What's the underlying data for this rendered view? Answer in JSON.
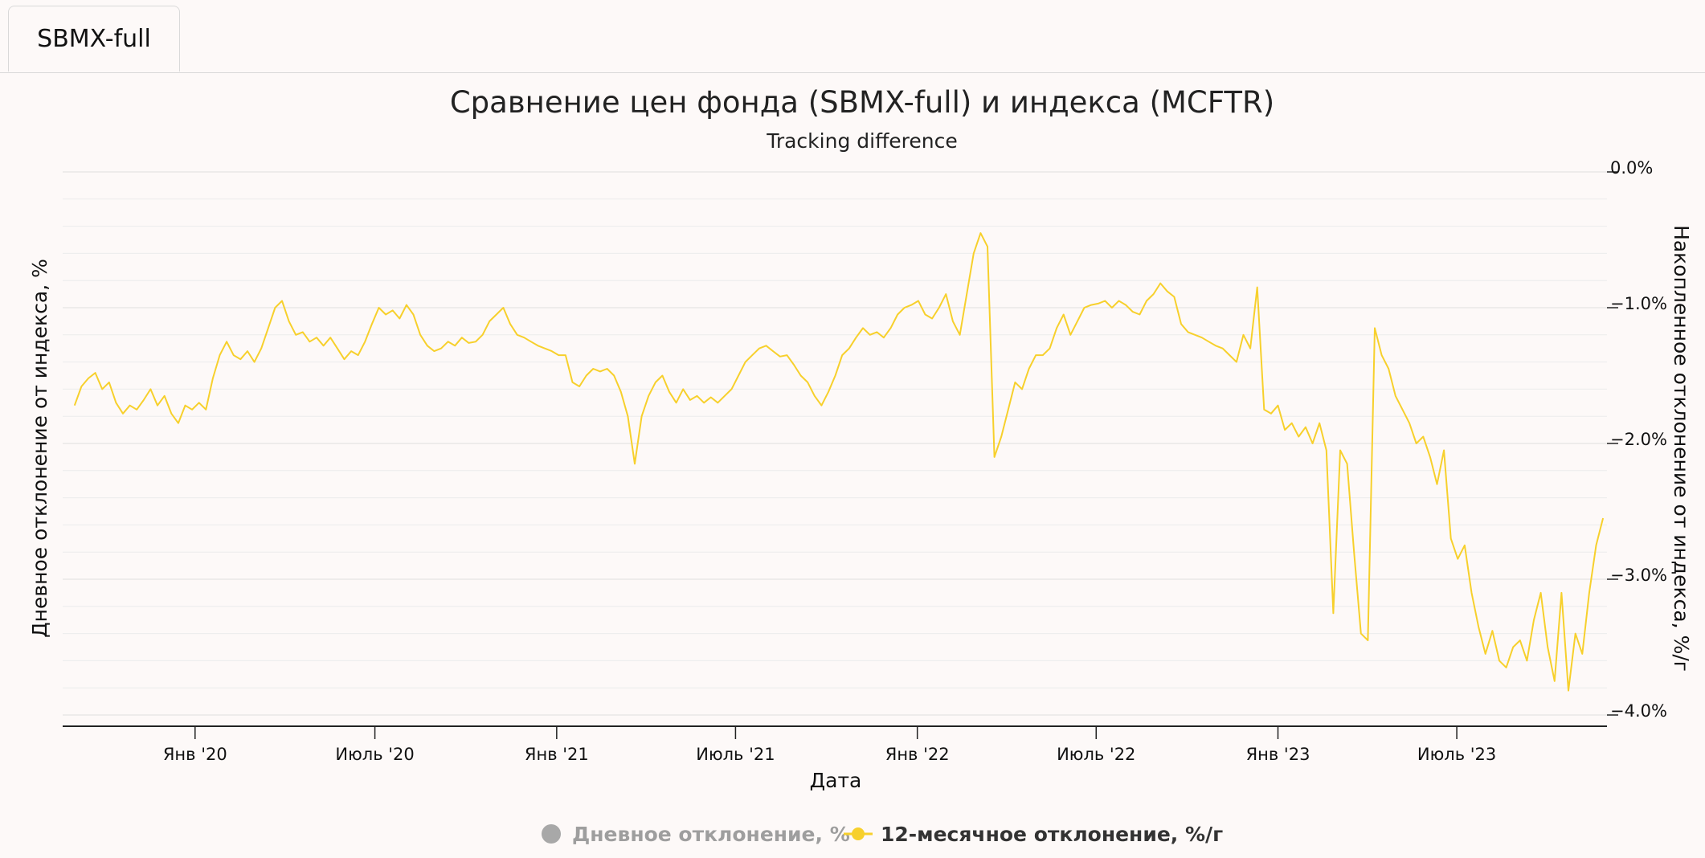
{
  "tabs": [
    {
      "label": "SBMX-full"
    }
  ],
  "chart_data": {
    "type": "line",
    "title": "Сравнение цен фонда (SBMX-full) и индекса (MCFTR)",
    "subtitle": "Tracking difference",
    "xlabel": "Дата",
    "ylabel_left": "Дневное отклонение от индекса, %",
    "ylabel_right": "Накопленное отклонение от индекса, %/г",
    "x_ticks": [
      {
        "label": "Янв '20",
        "date": "2020-01-01"
      },
      {
        "label": "Июль '20",
        "date": "2020-07-01"
      },
      {
        "label": "Янв '21",
        "date": "2021-01-01"
      },
      {
        "label": "Июль '21",
        "date": "2021-07-01"
      },
      {
        "label": "Янв '22",
        "date": "2022-01-01"
      },
      {
        "label": "Июль '22",
        "date": "2022-07-01"
      },
      {
        "label": "Янв '23",
        "date": "2023-01-01"
      },
      {
        "label": "Июль '23",
        "date": "2023-07-01"
      }
    ],
    "x_range": [
      "2019-08-20",
      "2023-11-30"
    ],
    "y_right_ticks": [
      "0.0%",
      "−1.0%",
      "−2.0%",
      "−3.0%",
      "−4.0%"
    ],
    "y_right_range": [
      -4.0,
      0.0
    ],
    "grid": true,
    "legend_position": "bottom-center",
    "series": [
      {
        "name": "Дневное отклонение, %",
        "color": "#a8a8a8",
        "hidden": true,
        "points": []
      },
      {
        "name": "12-месячное отклонение, %/г",
        "color": "#f7d02c",
        "points": [
          [
            "2019-09-01",
            -1.72
          ],
          [
            "2019-09-08",
            -1.58
          ],
          [
            "2019-09-15",
            -1.52
          ],
          [
            "2019-09-22",
            -1.48
          ],
          [
            "2019-09-29",
            -1.6
          ],
          [
            "2019-10-06",
            -1.55
          ],
          [
            "2019-10-13",
            -1.7
          ],
          [
            "2019-10-20",
            -1.78
          ],
          [
            "2019-10-27",
            -1.72
          ],
          [
            "2019-11-03",
            -1.75
          ],
          [
            "2019-11-10",
            -1.68
          ],
          [
            "2019-11-17",
            -1.6
          ],
          [
            "2019-11-24",
            -1.72
          ],
          [
            "2019-12-01",
            -1.65
          ],
          [
            "2019-12-08",
            -1.78
          ],
          [
            "2019-12-15",
            -1.85
          ],
          [
            "2019-12-22",
            -1.72
          ],
          [
            "2019-12-29",
            -1.75
          ],
          [
            "2020-01-05",
            -1.7
          ],
          [
            "2020-01-12",
            -1.75
          ],
          [
            "2020-01-19",
            -1.52
          ],
          [
            "2020-01-26",
            -1.35
          ],
          [
            "2020-02-02",
            -1.25
          ],
          [
            "2020-02-09",
            -1.35
          ],
          [
            "2020-02-16",
            -1.38
          ],
          [
            "2020-02-23",
            -1.32
          ],
          [
            "2020-03-01",
            -1.4
          ],
          [
            "2020-03-08",
            -1.3
          ],
          [
            "2020-03-15",
            -1.15
          ],
          [
            "2020-03-22",
            -1.0
          ],
          [
            "2020-03-29",
            -0.95
          ],
          [
            "2020-04-05",
            -1.1
          ],
          [
            "2020-04-12",
            -1.2
          ],
          [
            "2020-04-19",
            -1.18
          ],
          [
            "2020-04-26",
            -1.25
          ],
          [
            "2020-05-03",
            -1.22
          ],
          [
            "2020-05-10",
            -1.28
          ],
          [
            "2020-05-17",
            -1.22
          ],
          [
            "2020-05-24",
            -1.3
          ],
          [
            "2020-05-31",
            -1.38
          ],
          [
            "2020-06-07",
            -1.32
          ],
          [
            "2020-06-14",
            -1.35
          ],
          [
            "2020-06-21",
            -1.25
          ],
          [
            "2020-06-28",
            -1.12
          ],
          [
            "2020-07-05",
            -1.0
          ],
          [
            "2020-07-12",
            -1.05
          ],
          [
            "2020-07-19",
            -1.02
          ],
          [
            "2020-07-26",
            -1.08
          ],
          [
            "2020-08-02",
            -0.98
          ],
          [
            "2020-08-09",
            -1.05
          ],
          [
            "2020-08-16",
            -1.2
          ],
          [
            "2020-08-23",
            -1.28
          ],
          [
            "2020-08-30",
            -1.32
          ],
          [
            "2020-09-06",
            -1.3
          ],
          [
            "2020-09-13",
            -1.25
          ],
          [
            "2020-09-20",
            -1.28
          ],
          [
            "2020-09-27",
            -1.22
          ],
          [
            "2020-10-04",
            -1.26
          ],
          [
            "2020-10-11",
            -1.25
          ],
          [
            "2020-10-18",
            -1.2
          ],
          [
            "2020-10-25",
            -1.1
          ],
          [
            "2020-11-01",
            -1.05
          ],
          [
            "2020-11-08",
            -1.0
          ],
          [
            "2020-11-15",
            -1.12
          ],
          [
            "2020-11-22",
            -1.2
          ],
          [
            "2020-11-29",
            -1.22
          ],
          [
            "2020-12-06",
            -1.25
          ],
          [
            "2020-12-13",
            -1.28
          ],
          [
            "2020-12-20",
            -1.3
          ],
          [
            "2020-12-27",
            -1.32
          ],
          [
            "2021-01-03",
            -1.35
          ],
          [
            "2021-01-10",
            -1.35
          ],
          [
            "2021-01-17",
            -1.55
          ],
          [
            "2021-01-24",
            -1.58
          ],
          [
            "2021-01-31",
            -1.5
          ],
          [
            "2021-02-07",
            -1.45
          ],
          [
            "2021-02-14",
            -1.47
          ],
          [
            "2021-02-21",
            -1.45
          ],
          [
            "2021-02-28",
            -1.5
          ],
          [
            "2021-03-07",
            -1.62
          ],
          [
            "2021-03-14",
            -1.8
          ],
          [
            "2021-03-21",
            -2.15
          ],
          [
            "2021-03-28",
            -1.8
          ],
          [
            "2021-04-04",
            -1.65
          ],
          [
            "2021-04-11",
            -1.55
          ],
          [
            "2021-04-18",
            -1.5
          ],
          [
            "2021-04-25",
            -1.62
          ],
          [
            "2021-05-02",
            -1.7
          ],
          [
            "2021-05-09",
            -1.6
          ],
          [
            "2021-05-16",
            -1.68
          ],
          [
            "2021-05-23",
            -1.65
          ],
          [
            "2021-05-30",
            -1.7
          ],
          [
            "2021-06-06",
            -1.66
          ],
          [
            "2021-06-13",
            -1.7
          ],
          [
            "2021-06-20",
            -1.65
          ],
          [
            "2021-06-27",
            -1.6
          ],
          [
            "2021-07-04",
            -1.5
          ],
          [
            "2021-07-11",
            -1.4
          ],
          [
            "2021-07-18",
            -1.35
          ],
          [
            "2021-07-25",
            -1.3
          ],
          [
            "2021-08-01",
            -1.28
          ],
          [
            "2021-08-08",
            -1.32
          ],
          [
            "2021-08-15",
            -1.36
          ],
          [
            "2021-08-22",
            -1.35
          ],
          [
            "2021-08-29",
            -1.42
          ],
          [
            "2021-09-05",
            -1.5
          ],
          [
            "2021-09-12",
            -1.55
          ],
          [
            "2021-09-19",
            -1.65
          ],
          [
            "2021-09-26",
            -1.72
          ],
          [
            "2021-10-03",
            -1.62
          ],
          [
            "2021-10-10",
            -1.5
          ],
          [
            "2021-10-17",
            -1.35
          ],
          [
            "2021-10-24",
            -1.3
          ],
          [
            "2021-10-31",
            -1.22
          ],
          [
            "2021-11-07",
            -1.15
          ],
          [
            "2021-11-14",
            -1.2
          ],
          [
            "2021-11-21",
            -1.18
          ],
          [
            "2021-11-28",
            -1.22
          ],
          [
            "2021-12-05",
            -1.15
          ],
          [
            "2021-12-12",
            -1.05
          ],
          [
            "2021-12-19",
            -1.0
          ],
          [
            "2021-12-26",
            -0.98
          ],
          [
            "2022-01-02",
            -0.95
          ],
          [
            "2022-01-09",
            -1.05
          ],
          [
            "2022-01-16",
            -1.08
          ],
          [
            "2022-01-23",
            -1.0
          ],
          [
            "2022-01-30",
            -0.9
          ],
          [
            "2022-02-06",
            -1.1
          ],
          [
            "2022-02-13",
            -1.2
          ],
          [
            "2022-02-20",
            -0.9
          ],
          [
            "2022-02-27",
            -0.6
          ],
          [
            "2022-03-06",
            -0.45
          ],
          [
            "2022-03-13",
            -0.55
          ],
          [
            "2022-03-20",
            -2.1
          ],
          [
            "2022-03-27",
            -1.95
          ],
          [
            "2022-04-03",
            -1.75
          ],
          [
            "2022-04-10",
            -1.55
          ],
          [
            "2022-04-17",
            -1.6
          ],
          [
            "2022-04-24",
            -1.45
          ],
          [
            "2022-05-01",
            -1.35
          ],
          [
            "2022-05-08",
            -1.35
          ],
          [
            "2022-05-15",
            -1.3
          ],
          [
            "2022-05-22",
            -1.15
          ],
          [
            "2022-05-29",
            -1.05
          ],
          [
            "2022-06-05",
            -1.2
          ],
          [
            "2022-06-12",
            -1.1
          ],
          [
            "2022-06-19",
            -1.0
          ],
          [
            "2022-06-26",
            -0.98
          ],
          [
            "2022-07-03",
            -0.97
          ],
          [
            "2022-07-10",
            -0.95
          ],
          [
            "2022-07-17",
            -1.0
          ],
          [
            "2022-07-24",
            -0.95
          ],
          [
            "2022-07-31",
            -0.98
          ],
          [
            "2022-08-07",
            -1.03
          ],
          [
            "2022-08-14",
            -1.05
          ],
          [
            "2022-08-21",
            -0.95
          ],
          [
            "2022-08-28",
            -0.9
          ],
          [
            "2022-09-04",
            -0.82
          ],
          [
            "2022-09-11",
            -0.88
          ],
          [
            "2022-09-18",
            -0.92
          ],
          [
            "2022-09-25",
            -1.12
          ],
          [
            "2022-10-02",
            -1.18
          ],
          [
            "2022-10-09",
            -1.2
          ],
          [
            "2022-10-16",
            -1.22
          ],
          [
            "2022-10-23",
            -1.25
          ],
          [
            "2022-10-30",
            -1.28
          ],
          [
            "2022-11-06",
            -1.3
          ],
          [
            "2022-11-13",
            -1.35
          ],
          [
            "2022-11-20",
            -1.4
          ],
          [
            "2022-11-27",
            -1.2
          ],
          [
            "2022-12-04",
            -1.3
          ],
          [
            "2022-12-11",
            -0.85
          ],
          [
            "2022-12-18",
            -1.75
          ],
          [
            "2022-12-25",
            -1.78
          ],
          [
            "2023-01-01",
            -1.72
          ],
          [
            "2023-01-08",
            -1.9
          ],
          [
            "2023-01-15",
            -1.85
          ],
          [
            "2023-01-22",
            -1.95
          ],
          [
            "2023-01-29",
            -1.88
          ],
          [
            "2023-02-05",
            -2.0
          ],
          [
            "2023-02-12",
            -1.85
          ],
          [
            "2023-02-19",
            -2.05
          ],
          [
            "2023-02-26",
            -3.25
          ],
          [
            "2023-03-05",
            -2.05
          ],
          [
            "2023-03-12",
            -2.15
          ],
          [
            "2023-03-19",
            -2.8
          ],
          [
            "2023-03-26",
            -3.4
          ],
          [
            "2023-04-02",
            -3.45
          ],
          [
            "2023-04-09",
            -1.15
          ],
          [
            "2023-04-16",
            -1.35
          ],
          [
            "2023-04-23",
            -1.45
          ],
          [
            "2023-04-30",
            -1.65
          ],
          [
            "2023-05-07",
            -1.75
          ],
          [
            "2023-05-14",
            -1.85
          ],
          [
            "2023-05-21",
            -2.0
          ],
          [
            "2023-05-28",
            -1.95
          ],
          [
            "2023-06-04",
            -2.1
          ],
          [
            "2023-06-11",
            -2.3
          ],
          [
            "2023-06-18",
            -2.05
          ],
          [
            "2023-06-25",
            -2.7
          ],
          [
            "2023-07-02",
            -2.85
          ],
          [
            "2023-07-09",
            -2.75
          ],
          [
            "2023-07-16",
            -3.1
          ],
          [
            "2023-07-23",
            -3.35
          ],
          [
            "2023-07-30",
            -3.55
          ],
          [
            "2023-08-06",
            -3.38
          ],
          [
            "2023-08-13",
            -3.6
          ],
          [
            "2023-08-20",
            -3.65
          ],
          [
            "2023-08-27",
            -3.5
          ],
          [
            "2023-09-03",
            -3.45
          ],
          [
            "2023-09-10",
            -3.6
          ],
          [
            "2023-09-17",
            -3.3
          ],
          [
            "2023-09-24",
            -3.1
          ],
          [
            "2023-10-01",
            -3.5
          ],
          [
            "2023-10-08",
            -3.75
          ],
          [
            "2023-10-15",
            -3.1
          ],
          [
            "2023-10-22",
            -3.82
          ],
          [
            "2023-10-29",
            -3.4
          ],
          [
            "2023-11-05",
            -3.55
          ],
          [
            "2023-11-12",
            -3.1
          ],
          [
            "2023-11-19",
            -2.75
          ],
          [
            "2023-11-26",
            -2.55
          ]
        ]
      }
    ]
  }
}
